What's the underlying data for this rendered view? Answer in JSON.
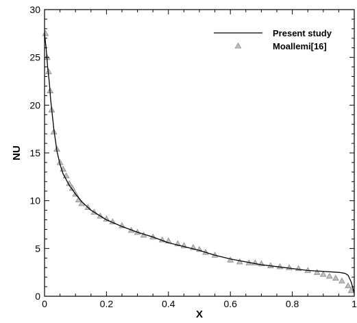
{
  "chart_data": {
    "type": "line",
    "title": "",
    "xlabel": "X",
    "ylabel": "NU",
    "xlim": [
      0,
      1
    ],
    "ylim": [
      0,
      30
    ],
    "x_ticks": [
      "0",
      "0.2",
      "0.4",
      "0.6",
      "0.8",
      "1"
    ],
    "y_ticks": [
      "0",
      "5",
      "10",
      "15",
      "20",
      "25",
      "30"
    ],
    "x_tick_values": [
      0,
      0.2,
      0.4,
      0.6,
      0.8,
      1.0
    ],
    "y_tick_values": [
      0,
      5,
      10,
      15,
      20,
      25,
      30
    ],
    "grid": false,
    "legend_position": "top-right",
    "colors": {
      "line": "#000000",
      "marker_fill": "#c0c0c0",
      "marker_stroke": "#8a8a8a"
    },
    "series": [
      {
        "name": "Present study",
        "style": "line",
        "x": [
          0.0,
          0.005,
          0.01,
          0.015,
          0.02,
          0.03,
          0.04,
          0.05,
          0.06,
          0.08,
          0.1,
          0.12,
          0.15,
          0.2,
          0.25,
          0.3,
          0.35,
          0.4,
          0.45,
          0.5,
          0.55,
          0.6,
          0.65,
          0.7,
          0.75,
          0.8,
          0.85,
          0.9,
          0.95,
          0.97,
          0.98,
          0.99,
          1.0
        ],
        "y": [
          27.5,
          26.0,
          24.0,
          22.5,
          20.5,
          17.5,
          15.2,
          13.8,
          12.8,
          11.6,
          10.7,
          9.9,
          9.0,
          8.0,
          7.3,
          6.7,
          6.2,
          5.6,
          5.2,
          4.8,
          4.3,
          3.9,
          3.6,
          3.3,
          3.1,
          2.9,
          2.7,
          2.6,
          2.5,
          2.4,
          2.2,
          1.5,
          0.3
        ]
      },
      {
        "name": "Moallemi[16]",
        "style": "markers",
        "marker": "triangle",
        "x": [
          0.003,
          0.008,
          0.013,
          0.018,
          0.023,
          0.03,
          0.04,
          0.05,
          0.06,
          0.07,
          0.08,
          0.09,
          0.1,
          0.11,
          0.12,
          0.14,
          0.16,
          0.18,
          0.2,
          0.22,
          0.25,
          0.28,
          0.3,
          0.32,
          0.35,
          0.38,
          0.4,
          0.43,
          0.45,
          0.48,
          0.5,
          0.52,
          0.55,
          0.6,
          0.63,
          0.66,
          0.68,
          0.7,
          0.73,
          0.76,
          0.79,
          0.82,
          0.85,
          0.88,
          0.9,
          0.92,
          0.94,
          0.96,
          0.98,
          0.99
        ],
        "y": [
          27.5,
          25.0,
          23.5,
          21.5,
          19.5,
          17.2,
          15.4,
          14.0,
          13.3,
          12.6,
          11.8,
          11.3,
          10.7,
          10.1,
          9.7,
          9.3,
          8.8,
          8.4,
          8.1,
          7.8,
          7.4,
          6.9,
          6.7,
          6.4,
          6.2,
          5.9,
          5.8,
          5.5,
          5.3,
          5.1,
          4.9,
          4.6,
          4.3,
          3.8,
          3.6,
          3.5,
          3.5,
          3.4,
          3.2,
          3.1,
          3.0,
          2.9,
          2.7,
          2.5,
          2.3,
          2.1,
          1.9,
          1.6,
          1.1,
          0.6
        ]
      }
    ]
  }
}
